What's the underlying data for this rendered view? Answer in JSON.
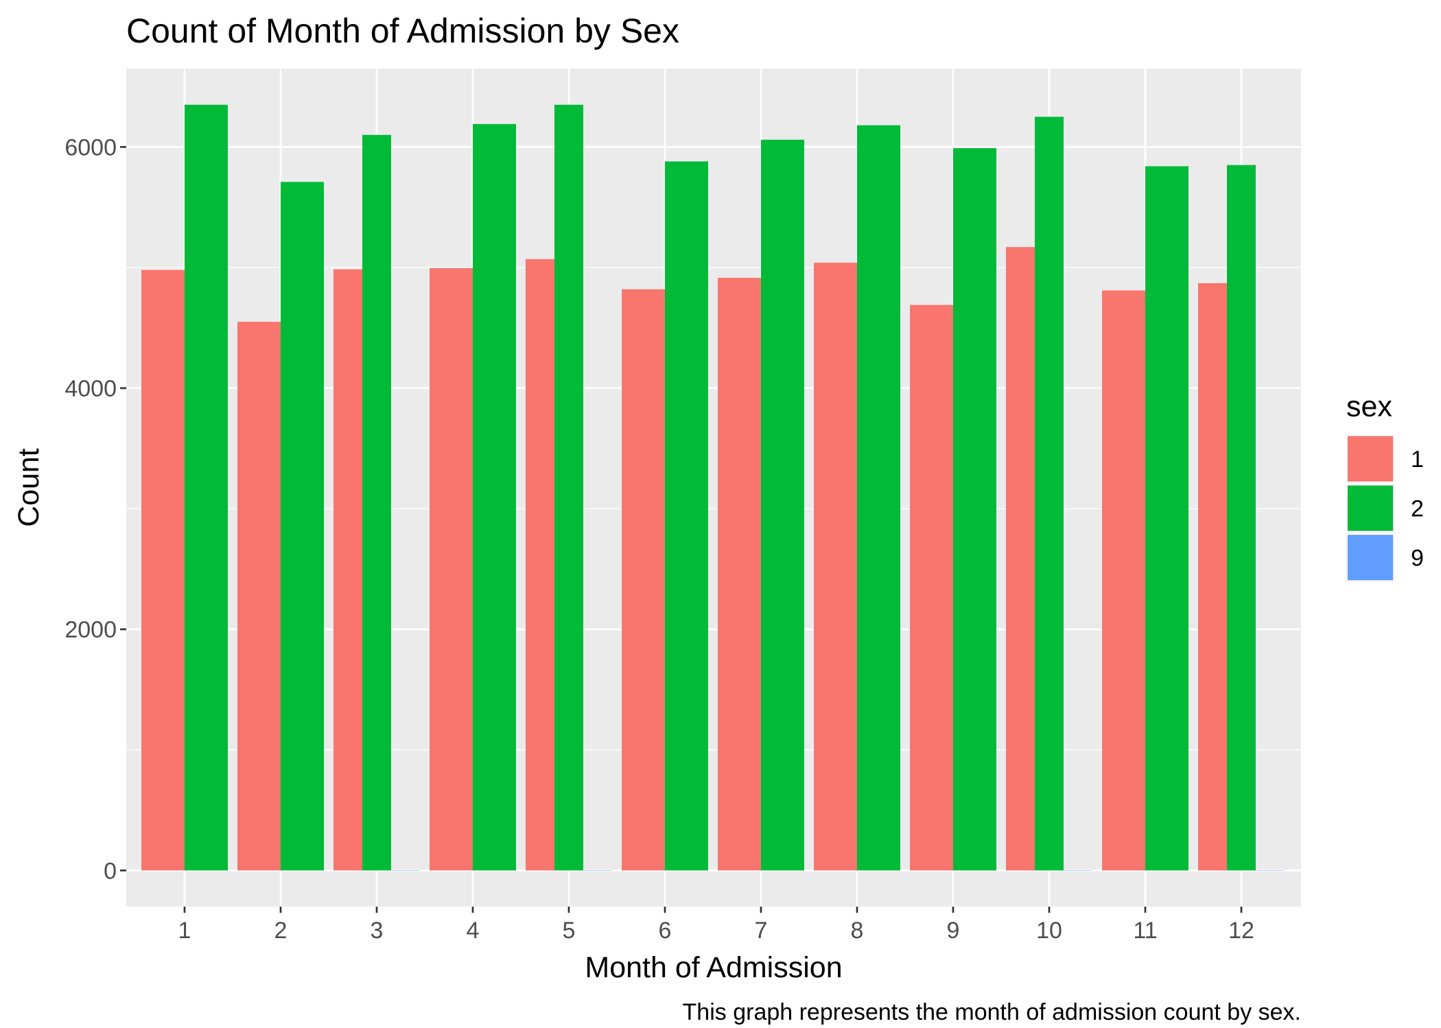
{
  "chart_data": {
    "type": "bar",
    "title": "Count of Month of Admission by Sex",
    "xlabel": "Month of Admission",
    "ylabel": "Count",
    "caption": "This graph represents the month of admission count by sex.",
    "categories": [
      "1",
      "2",
      "3",
      "4",
      "5",
      "6",
      "7",
      "8",
      "9",
      "10",
      "11",
      "12"
    ],
    "yticks": [
      0,
      2000,
      4000,
      6000
    ],
    "ylim": [
      -300,
      6650
    ],
    "grid": true,
    "legend": {
      "title": "sex",
      "position": "right",
      "entries": [
        {
          "label": "1",
          "color": "#F8766D"
        },
        {
          "label": "2",
          "color": "#00BA38"
        },
        {
          "label": "9",
          "color": "#619CFF"
        }
      ]
    },
    "series": [
      {
        "name": "1",
        "color": "#F8766D",
        "values": [
          4980,
          4550,
          4985,
          4995,
          5070,
          4820,
          4915,
          5040,
          4690,
          5170,
          4810,
          4870
        ]
      },
      {
        "name": "2",
        "color": "#00BA38",
        "values": [
          6350,
          5710,
          6100,
          6190,
          6350,
          5880,
          6060,
          6180,
          5990,
          6250,
          5840,
          5850
        ]
      },
      {
        "name": "9",
        "color": "#619CFF",
        "values": [
          0,
          0,
          2,
          0,
          2,
          0,
          0,
          0,
          0,
          2,
          0,
          2
        ]
      }
    ]
  }
}
